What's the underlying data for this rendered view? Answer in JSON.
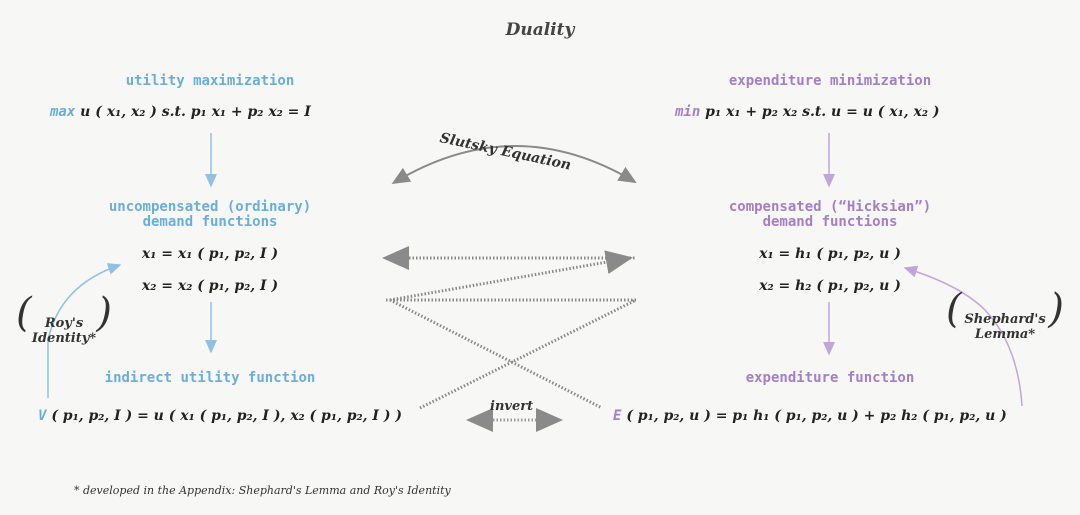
{
  "title": "Duality",
  "left": {
    "problem_label": "utility maximization",
    "problem_kw": "max",
    "problem_eq": "u ( x₁, x₂ )  s.t.  p₁ x₁ + p₂ x₂ = I",
    "demand_label_1": "uncompensated (ordinary)",
    "demand_label_2": "demand functions",
    "demand_eq_1": "x₁ = x₁ ( p₁, p₂, I )",
    "demand_eq_2": "x₂ = x₂ ( p₁, p₂, I )",
    "value_fn_label": "indirect utility function",
    "value_fn_kw": "V",
    "value_fn_eq": "( p₁, p₂, I ) = u ( x₁ ( p₁, p₂, I ), x₂ ( p₁, p₂, I ) )"
  },
  "right": {
    "problem_label": "expenditure minimization",
    "problem_kw": "min",
    "problem_eq": "p₁ x₁ + p₂ x₂  s.t.  u = u ( x₁, x₂ )",
    "demand_label_1": "compensated (“Hicksian”)",
    "demand_label_2": "demand functions",
    "demand_eq_1": "x₁ = h₁ ( p₁, p₂, u )",
    "demand_eq_2": "x₂ = h₂ ( p₁, p₂, u )",
    "value_fn_label": "expenditure function",
    "value_fn_kw": "E",
    "value_fn_eq": "( p₁, p₂, u ) = p₁ h₁ ( p₁, p₂, u ) + p₂ h₂ ( p₁, p₂, u )"
  },
  "center": {
    "slutsky": "Slutsky Equation",
    "invert": "invert"
  },
  "annotations": {
    "roy_1": "Roy's",
    "roy_2": "Identity*",
    "shephard_1": "Shephard's",
    "shephard_2": "Lemma*"
  },
  "footnote": "* developed in the Appendix: Shephard's Lemma and Roy's Identity",
  "colors": {
    "blue": "#6aaee0",
    "purple": "#a57ec8",
    "gray_arrow": "#8a8a8a"
  }
}
